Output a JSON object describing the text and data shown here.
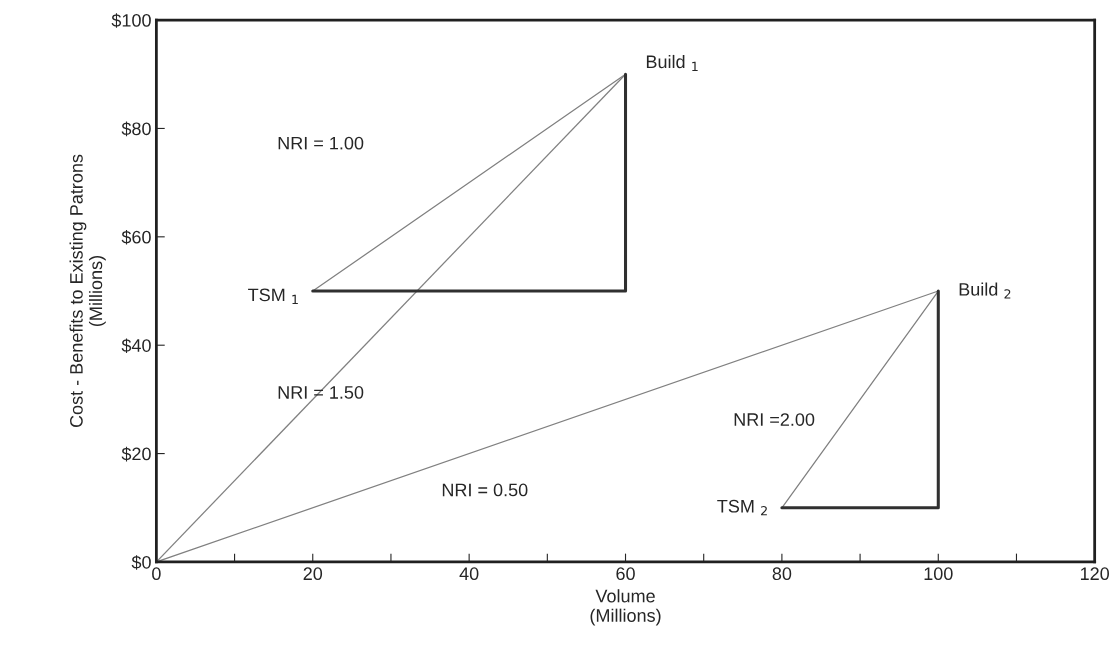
{
  "chart_data": {
    "type": "line",
    "xlabel": "Volume\n(Millions)",
    "ylabel": "Cost - Benefits to Existing Patrons\n(Millions)",
    "series": [
      {
        "color": "#808080",
        "x": [
          0,
          60
        ],
        "values": [
          0,
          90
        ]
      },
      {
        "color": "#808080",
        "x": [
          0,
          100
        ],
        "values": [
          0,
          50
        ]
      },
      {
        "color": "#808080",
        "x": [
          20,
          60
        ],
        "values": [
          50,
          90
        ]
      },
      {
        "color": "#808080",
        "x": [
          80,
          100
        ],
        "values": [
          10,
          50
        ]
      },
      {
        "color": "#303030",
        "x": [
          20,
          60,
          60
        ],
        "values": [
          50,
          50,
          90
        ]
      },
      {
        "color": "#303030",
        "x": [
          80,
          100,
          100
        ],
        "values": [
          10,
          10,
          50
        ]
      }
    ],
    "annotations": [
      {
        "text": "Build $_{1}$",
        "x": 60,
        "y": 90
      },
      {
        "text": "TSM $_{1}$",
        "x": 20,
        "y": 50
      },
      {
        "text": "Build $_{2}$",
        "x": 100,
        "y": 50
      },
      {
        "text": "TSM $_{2}$",
        "x": 80,
        "y": 10
      },
      "NRI = 1.00",
      {
        "text": "NRI = 1.50",
        "x": 20,
        "y": 30
      },
      {
        "text": "NRI =2.00",
        "x": 90,
        "y": 30
      },
      {
        "text": "NRI = 0.50",
        "x": 40,
        "y": 20
      }
    ],
    "xlim": [
      0,
      120
    ],
    "xticks": [
      0,
      {
        "value": 10,
        "label": null
      },
      20,
      {
        "value": 30,
        "label": null
      },
      40,
      {
        "value": 50,
        "label": null
      },
      60,
      {
        "value": 70,
        "label": null
      },
      80,
      {
        "value": 90,
        "label": null
      },
      100,
      {
        "value": 110,
        "label": null
      },
      120
    ],
    "ylim": [
      0,
      100
    ],
    "yticks": [
      {
        "value": 0,
        "label": "$0"
      },
      {
        "value": 20,
        "label": "$20"
      },
      {
        "value": 40,
        "label": "$40"
      },
      {
        "value": 60,
        "label": "$60"
      },
      {
        "value": 80,
        "label": "$80"
      },
      {
        "value": 100,
        "label": "$100"
      }
    ],
    "grid": false,
    "legend": false,
    "marker": "none",
    "line_style": "solid"
  }
}
